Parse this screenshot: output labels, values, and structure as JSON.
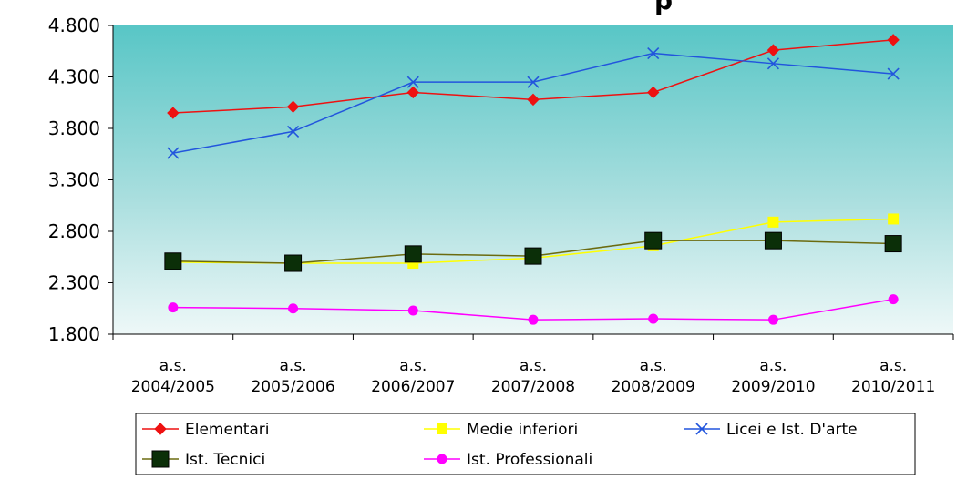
{
  "chart_data": {
    "type": "line",
    "title": "",
    "title_visible_fragment": "p",
    "xlabel": "",
    "ylabel": "",
    "categories": [
      [
        "a.s.",
        "2004/2005"
      ],
      [
        "a.s.",
        "2005/2006"
      ],
      [
        "a.s.",
        "2006/2007"
      ],
      [
        "a.s.",
        "2007/2008"
      ],
      [
        "a.s.",
        "2008/2009"
      ],
      [
        "a.s.",
        "2009/2010"
      ],
      [
        "a.s.",
        "2010/2011"
      ]
    ],
    "ylim": [
      1800,
      4800
    ],
    "yticks": [
      1800,
      2300,
      2800,
      3300,
      3800,
      4300,
      4800
    ],
    "ytick_labels": [
      "1.800",
      "2.300",
      "2.800",
      "3.300",
      "3.800",
      "4.300",
      "4.800"
    ],
    "grid": false,
    "plot_background": "gradient-teal",
    "legend_position": "bottom",
    "series": [
      {
        "name": "Elementari",
        "color": "#ee1111",
        "marker": "diamond",
        "values": [
          3950,
          4010,
          4150,
          4080,
          4150,
          4560,
          4660
        ]
      },
      {
        "name": "Medie inferiori",
        "color": "#ffff00",
        "marker": "square",
        "values": [
          2500,
          2490,
          2490,
          2540,
          2660,
          2890,
          2920
        ]
      },
      {
        "name": "Licei e Ist. D'arte",
        "color": "#2255dd",
        "marker": "x",
        "values": [
          3560,
          3770,
          4250,
          4250,
          4530,
          4430,
          4330
        ]
      },
      {
        "name": "Ist. Tecnici",
        "color": "#6b6b10",
        "marker": "big-square",
        "values": [
          2510,
          2490,
          2580,
          2560,
          2710,
          2710,
          2680
        ]
      },
      {
        "name": "Ist. Professionali",
        "color": "#ff00ff",
        "marker": "circle",
        "values": [
          2060,
          2050,
          2030,
          1940,
          1950,
          1940,
          2140
        ]
      }
    ]
  }
}
